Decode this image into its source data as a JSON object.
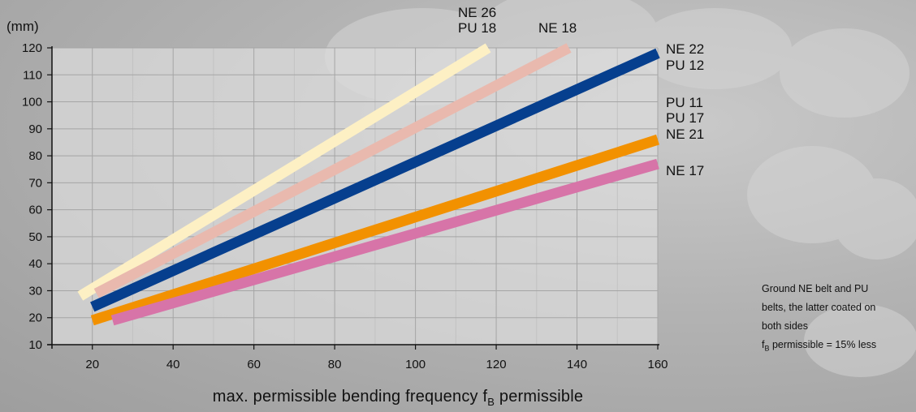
{
  "chart_data": {
    "type": "line",
    "y_unit": "(mm)",
    "xlabel_main": "max. permissible bending frequency f",
    "xlabel_sub": "B",
    "xlabel_tail": " permissible",
    "x_ticks": [
      20,
      40,
      60,
      80,
      100,
      120,
      140,
      160
    ],
    "y_ticks": [
      10,
      20,
      30,
      40,
      50,
      60,
      70,
      80,
      90,
      100,
      110,
      120
    ],
    "xlim": [
      10,
      160
    ],
    "ylim": [
      10,
      120
    ],
    "grid": true,
    "series": [
      {
        "name": "NE 26 / PU 18",
        "color": "#fdf0c4",
        "x": [
          17,
          118
        ],
        "y": [
          28,
          120
        ]
      },
      {
        "name": "NE 18",
        "color": "#e9b9ae",
        "x": [
          21,
          138
        ],
        "y": [
          29,
          120
        ]
      },
      {
        "name": "NE 22 / PU 12",
        "color": "#063f8e",
        "x": [
          20,
          160
        ],
        "y": [
          24,
          118
        ]
      },
      {
        "name": "PU 11 / PU 17 / NE 21",
        "color": "#f29100",
        "x": [
          20,
          160
        ],
        "y": [
          19,
          86
        ]
      },
      {
        "name": "NE 17",
        "color": "#d774a8",
        "x": [
          25,
          160
        ],
        "y": [
          19,
          77
        ]
      }
    ],
    "labels": [
      "NE 26",
      "PU 18",
      "NE 18",
      "NE 22",
      "PU 12",
      "PU 11",
      "PU 17",
      "NE 21",
      "NE 17"
    ]
  },
  "note": {
    "lines": [
      "Ground NE belt and PU",
      "belts, the latter coated on",
      "both sides"
    ],
    "last_main": "f",
    "last_sub": "B",
    "last_tail": " permissible = 15% less"
  }
}
